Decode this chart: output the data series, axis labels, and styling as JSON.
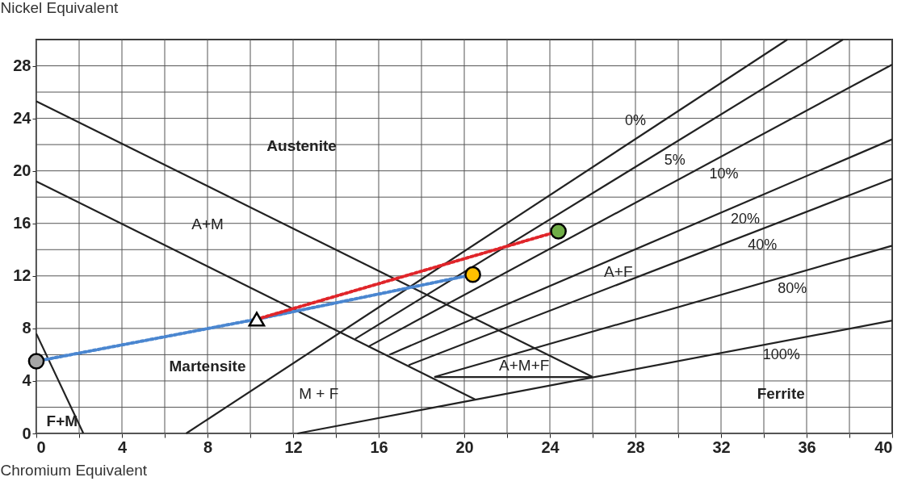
{
  "chart_data": {
    "type": "line",
    "xlabel": "Chromium  Equivalent",
    "ylabel": "Nickel Equivalent",
    "xlim": [
      0,
      40
    ],
    "ylim": [
      0,
      30
    ],
    "xticks": [
      0,
      {
        "value": 2,
        "label": null
      },
      4,
      {
        "value": 6,
        "label": null
      },
      8,
      {
        "value": 10,
        "label": null
      },
      12,
      {
        "value": 14,
        "label": null
      },
      16,
      {
        "value": 18,
        "label": null
      },
      20,
      {
        "value": 22,
        "label": null
      },
      24,
      {
        "value": 26,
        "label": null
      },
      28,
      {
        "value": 30,
        "label": null
      },
      32,
      {
        "value": 34,
        "label": null
      },
      36,
      {
        "value": 38,
        "label": null
      },
      40
    ],
    "yticks": [
      0,
      {
        "value": 2,
        "label": null
      },
      4,
      {
        "value": 6,
        "label": null
      },
      8,
      {
        "value": 10,
        "label": null
      },
      12,
      {
        "value": 14,
        "label": null
      },
      16,
      {
        "value": 18,
        "label": null
      },
      20,
      {
        "value": 22,
        "label": null
      },
      24,
      {
        "value": 26,
        "label": null
      },
      28,
      {
        "value": 30,
        "label": null
      }
    ],
    "grid": true,
    "series": [
      {
        "x": [
          0,
          26
        ],
        "values": [
          25.3,
          4.3
        ],
        "color": "#222222",
        "line_style": "solid"
      },
      {
        "x": [
          0,
          20.5
        ],
        "values": [
          19.2,
          2.6
        ],
        "color": "#222222",
        "line_style": "solid"
      },
      {
        "x": [
          7,
          35.1
        ],
        "values": [
          0,
          30
        ],
        "color": "#222222",
        "line_style": "solid"
      },
      {
        "x": [
          14.9,
          37.7
        ],
        "values": [
          7.2,
          30
        ],
        "color": "#222222",
        "line_style": "solid"
      },
      {
        "x": [
          15.5,
          40
        ],
        "values": [
          6.6,
          28.1
        ],
        "color": "#222222",
        "line_style": "solid"
      },
      {
        "x": [
          16.5,
          40
        ],
        "values": [
          6.0,
          22.4
        ],
        "color": "#222222",
        "line_style": "solid"
      },
      {
        "x": [
          17.4,
          40
        ],
        "values": [
          5.2,
          19.4
        ],
        "color": "#222222",
        "line_style": "solid"
      },
      {
        "x": [
          18.6,
          40
        ],
        "values": [
          4.3,
          14.3
        ],
        "color": "#222222",
        "line_style": "solid"
      },
      {
        "x": [
          12.2,
          40
        ],
        "values": [
          0,
          8.6
        ],
        "color": "#222222",
        "line_style": "solid"
      },
      {
        "x": [
          18.6,
          26
        ],
        "values": [
          4.3,
          4.3
        ],
        "color": "#222222",
        "line_style": "solid"
      },
      {
        "x": [
          0,
          2.2
        ],
        "values": [
          7.6,
          0
        ],
        "color": "#222222",
        "line_style": "solid"
      },
      {
        "x": [
          0,
          10.3,
          20.4
        ],
        "values": [
          5.5,
          8.7,
          12.1
        ],
        "color": "#4a86d0",
        "line_style": "dotted"
      },
      {
        "x": [
          10.3,
          24.4
        ],
        "values": [
          8.7,
          15.4
        ],
        "color": "#e0252a",
        "line_style": "dotted"
      },
      {
        "type": "scatter",
        "x": [
          0
        ],
        "values": [
          5.5
        ],
        "color": "#a6a6a6",
        "marker": "circle"
      },
      {
        "type": "scatter",
        "x": [
          10.3
        ],
        "values": [
          8.7
        ],
        "color": "#ffffff",
        "marker": "triangle"
      },
      {
        "type": "scatter",
        "x": [
          20.4
        ],
        "values": [
          12.1
        ],
        "color": "#ffc000",
        "marker": "circle"
      },
      {
        "type": "scatter",
        "x": [
          24.4
        ],
        "values": [
          15.4
        ],
        "color": "#70ad47",
        "marker": "circle"
      }
    ],
    "annotations": [
      "Austenite",
      "A+M",
      "Martensite",
      "M + F",
      "A+M+F",
      "A+F",
      "Ferrite",
      "F+M",
      {
        "text": "0%",
        "x": 28.6,
        "y": 23.07
      },
      {
        "text": "5%",
        "x": 29.2,
        "y": 21.5
      },
      {
        "text": "10%",
        "x": 31.3,
        "y": 20.47
      },
      {
        "text": "20%",
        "x": 32.3,
        "y": 17.03
      },
      {
        "text": "40%",
        "x": 33.1,
        "y": 15.06
      },
      {
        "text": "80%",
        "x": 34.5,
        "y": 11.73
      },
      {
        "text": "100%",
        "x": 33.8,
        "y": 6.68
      }
    ]
  }
}
